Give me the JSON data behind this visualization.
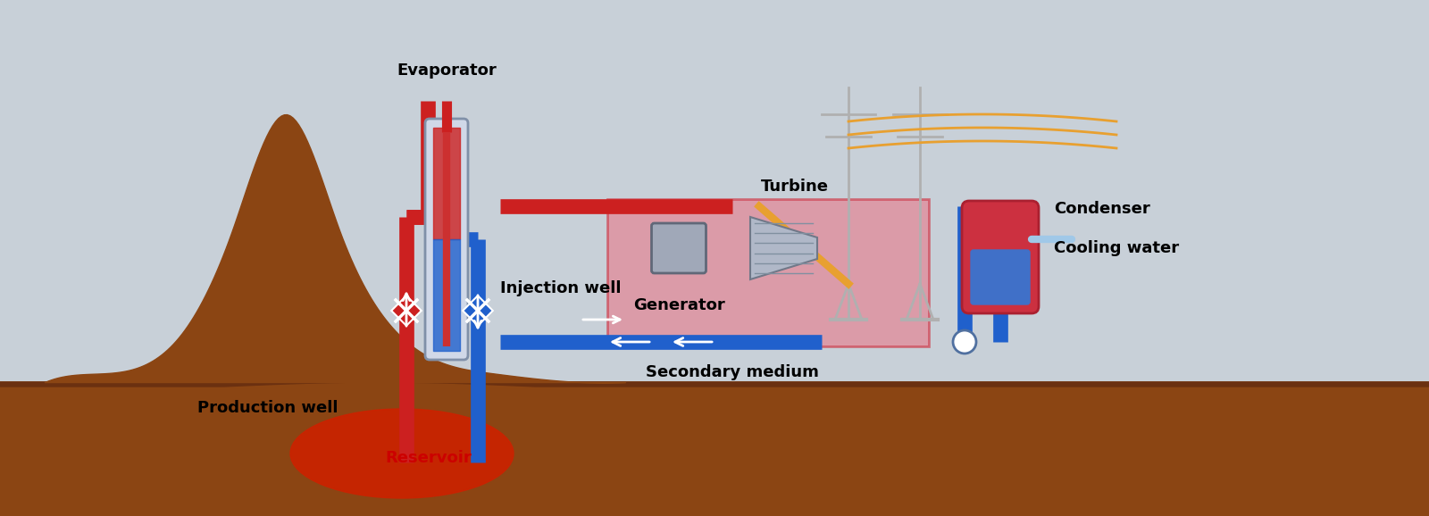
{
  "bg_color": "#c8d0d8",
  "ground_color": "#8B4513",
  "ground_dark": "#6B3010",
  "reservoir_color": "#cc2200",
  "red_pipe": "#cc2020",
  "blue_pipe": "#2060cc",
  "orange_line": "#e8a030",
  "pink_box": "#e87080",
  "gray_box": "#909090",
  "white_color": "#ffffff",
  "labels": {
    "evaporator": "Evaporator",
    "turbine": "Turbine",
    "generator": "Generator",
    "condenser": "Condenser",
    "cooling_water": "Cooling water",
    "secondary_medium": "Secondary medium",
    "injection_well": "Injection well",
    "production_well": "Production well",
    "reservoir": "Reservoir"
  },
  "label_fontsize": 13,
  "label_fontweight": "bold"
}
